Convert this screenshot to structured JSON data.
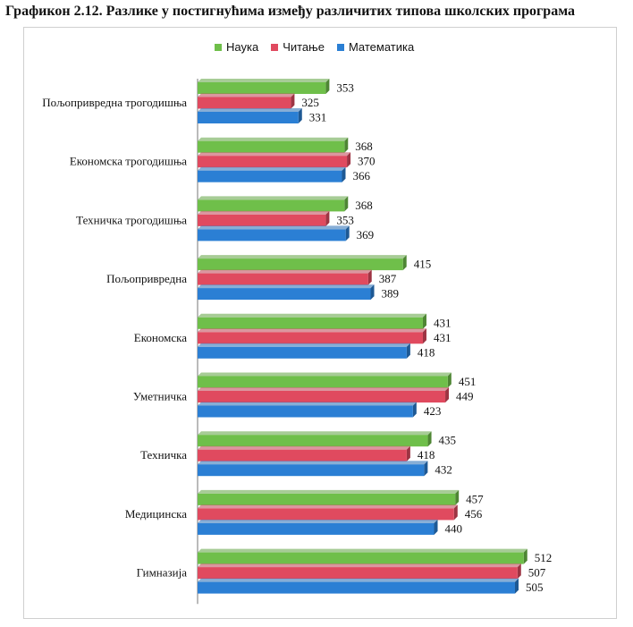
{
  "title": "Графикон 2.12. Разлике у постигнућима између различитих типова школских програма",
  "chart_data": {
    "type": "bar",
    "orientation": "horizontal",
    "categories": [
      "Пољопривредна трогодишња",
      "Економска трогодишња",
      "Техничка трогодишња",
      "Пољопривредна",
      "Економска",
      "Уметничка",
      "Техничка",
      "Медицинска",
      "Гимназија"
    ],
    "series": [
      {
        "name": "Наука",
        "color": "#6fbf4a",
        "values": [
          353,
          368,
          368,
          415,
          431,
          451,
          435,
          457,
          512
        ]
      },
      {
        "name": "Читање",
        "color": "#e04a5f",
        "values": [
          325,
          370,
          353,
          387,
          431,
          449,
          418,
          456,
          507
        ]
      },
      {
        "name": "Математика",
        "color": "#2b7fd4",
        "values": [
          331,
          366,
          369,
          389,
          418,
          423,
          432,
          440,
          505
        ]
      }
    ],
    "xlim": [
      250,
      550
    ],
    "legend_position": "top",
    "grid": false,
    "data_labels": true
  }
}
